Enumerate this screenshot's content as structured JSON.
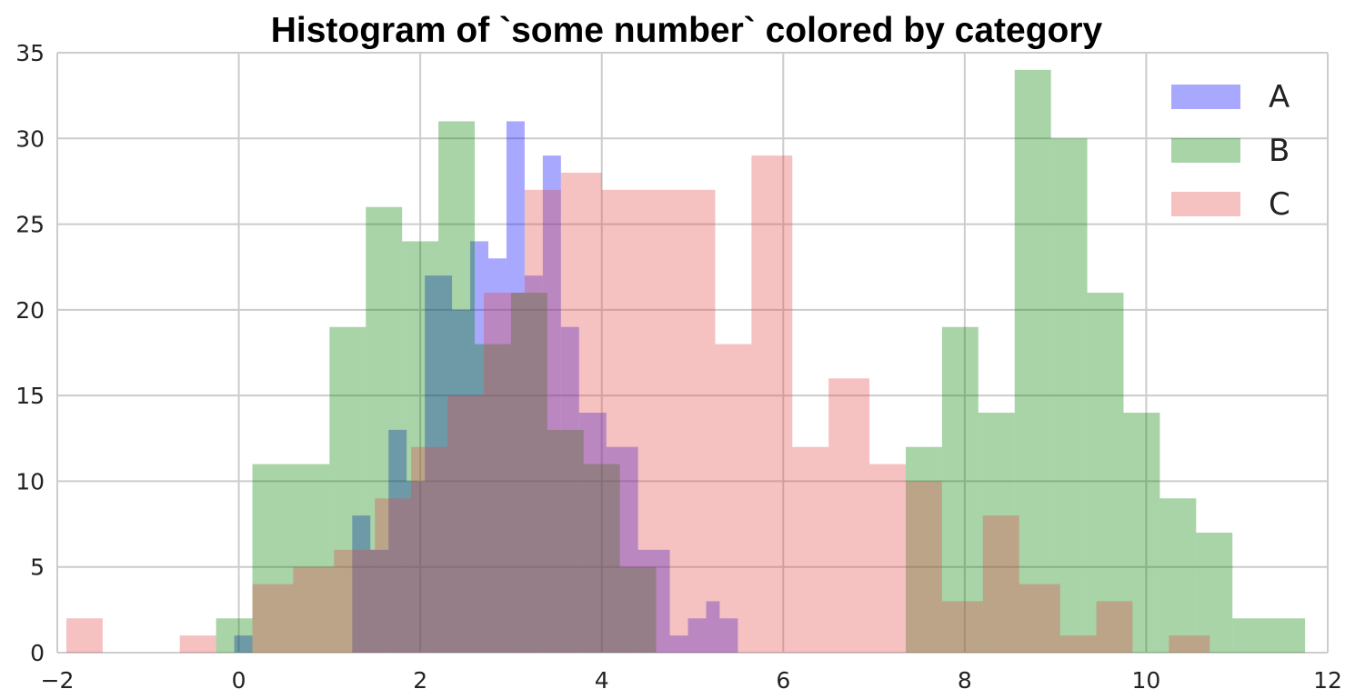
{
  "chart_data": {
    "type": "histogram",
    "title": "Histogram of `some number` colored by category",
    "xlabel": "",
    "ylabel": "",
    "xlim": [
      -2,
      12
    ],
    "ylim": [
      0,
      35
    ],
    "xticks": [
      -2,
      0,
      2,
      4,
      6,
      8,
      10,
      12
    ],
    "yticks": [
      0,
      5,
      10,
      15,
      20,
      25,
      30,
      35
    ],
    "grid": true,
    "legend_position": "top-right",
    "series": [
      {
        "name": "A",
        "color": "#0000ff",
        "bins": [
          {
            "x0": -0.05,
            "x1": 0.15,
            "count": 1
          },
          {
            "x0": 1.25,
            "x1": 1.45,
            "count": 8
          },
          {
            "x0": 1.45,
            "x1": 1.65,
            "count": 6
          },
          {
            "x0": 1.65,
            "x1": 1.85,
            "count": 13
          },
          {
            "x0": 1.85,
            "x1": 2.05,
            "count": 10
          },
          {
            "x0": 2.05,
            "x1": 2.35,
            "count": 22
          },
          {
            "x0": 2.35,
            "x1": 2.55,
            "count": 20
          },
          {
            "x0": 2.55,
            "x1": 2.75,
            "count": 24
          },
          {
            "x0": 2.75,
            "x1": 2.95,
            "count": 23
          },
          {
            "x0": 2.95,
            "x1": 3.15,
            "count": 31
          },
          {
            "x0": 3.15,
            "x1": 3.35,
            "count": 22
          },
          {
            "x0": 3.35,
            "x1": 3.55,
            "count": 29
          },
          {
            "x0": 3.55,
            "x1": 3.75,
            "count": 19
          },
          {
            "x0": 3.75,
            "x1": 4.05,
            "count": 14
          },
          {
            "x0": 4.05,
            "x1": 4.4,
            "count": 12
          },
          {
            "x0": 4.4,
            "x1": 4.75,
            "count": 6
          },
          {
            "x0": 4.75,
            "x1": 4.95,
            "count": 1
          },
          {
            "x0": 4.95,
            "x1": 5.15,
            "count": 2
          },
          {
            "x0": 5.15,
            "x1": 5.3,
            "count": 3
          },
          {
            "x0": 5.3,
            "x1": 5.5,
            "count": 2
          }
        ]
      },
      {
        "name": "B",
        "color": "#008000",
        "bins": [
          {
            "x0": -0.25,
            "x1": 0.15,
            "count": 2
          },
          {
            "x0": 0.15,
            "x1": 1.0,
            "count": 11
          },
          {
            "x0": 1.0,
            "x1": 1.4,
            "count": 19
          },
          {
            "x0": 1.4,
            "x1": 1.8,
            "count": 26
          },
          {
            "x0": 1.8,
            "x1": 2.2,
            "count": 24
          },
          {
            "x0": 2.2,
            "x1": 2.6,
            "count": 31
          },
          {
            "x0": 2.6,
            "x1": 3.0,
            "count": 18
          },
          {
            "x0": 3.0,
            "x1": 3.4,
            "count": 21
          },
          {
            "x0": 3.4,
            "x1": 3.8,
            "count": 13
          },
          {
            "x0": 3.8,
            "x1": 4.2,
            "count": 11
          },
          {
            "x0": 4.2,
            "x1": 4.6,
            "count": 5
          },
          {
            "x0": 7.35,
            "x1": 7.75,
            "count": 12
          },
          {
            "x0": 7.75,
            "x1": 8.15,
            "count": 19
          },
          {
            "x0": 8.15,
            "x1": 8.55,
            "count": 14
          },
          {
            "x0": 8.55,
            "x1": 8.95,
            "count": 34
          },
          {
            "x0": 8.95,
            "x1": 9.35,
            "count": 30
          },
          {
            "x0": 9.35,
            "x1": 9.75,
            "count": 21
          },
          {
            "x0": 9.75,
            "x1": 10.15,
            "count": 14
          },
          {
            "x0": 10.15,
            "x1": 10.55,
            "count": 9
          },
          {
            "x0": 10.55,
            "x1": 10.95,
            "count": 7
          },
          {
            "x0": 10.95,
            "x1": 11.75,
            "count": 2
          }
        ]
      },
      {
        "name": "C",
        "color": "#e24a4a",
        "bins": [
          {
            "x0": -1.9,
            "x1": -1.5,
            "count": 2
          },
          {
            "x0": -0.65,
            "x1": -0.25,
            "count": 1
          },
          {
            "x0": 0.15,
            "x1": 0.6,
            "count": 4
          },
          {
            "x0": 0.6,
            "x1": 1.05,
            "count": 5
          },
          {
            "x0": 1.05,
            "x1": 1.5,
            "count": 6
          },
          {
            "x0": 1.5,
            "x1": 1.9,
            "count": 9
          },
          {
            "x0": 1.9,
            "x1": 2.3,
            "count": 12
          },
          {
            "x0": 2.3,
            "x1": 2.7,
            "count": 15
          },
          {
            "x0": 2.7,
            "x1": 3.15,
            "count": 21
          },
          {
            "x0": 3.15,
            "x1": 3.55,
            "count": 27
          },
          {
            "x0": 3.55,
            "x1": 4.0,
            "count": 28
          },
          {
            "x0": 4.0,
            "x1": 5.25,
            "count": 27
          },
          {
            "x0": 5.25,
            "x1": 5.65,
            "count": 18
          },
          {
            "x0": 5.65,
            "x1": 6.1,
            "count": 29
          },
          {
            "x0": 6.1,
            "x1": 6.5,
            "count": 12
          },
          {
            "x0": 6.5,
            "x1": 6.95,
            "count": 16
          },
          {
            "x0": 6.95,
            "x1": 7.35,
            "count": 11
          },
          {
            "x0": 7.35,
            "x1": 7.75,
            "count": 10
          },
          {
            "x0": 7.75,
            "x1": 8.2,
            "count": 3
          },
          {
            "x0": 8.2,
            "x1": 8.6,
            "count": 8
          },
          {
            "x0": 8.6,
            "x1": 9.05,
            "count": 4
          },
          {
            "x0": 9.05,
            "x1": 9.45,
            "count": 1
          },
          {
            "x0": 9.45,
            "x1": 9.85,
            "count": 3
          },
          {
            "x0": 10.25,
            "x1": 10.7,
            "count": 1
          }
        ]
      }
    ]
  }
}
